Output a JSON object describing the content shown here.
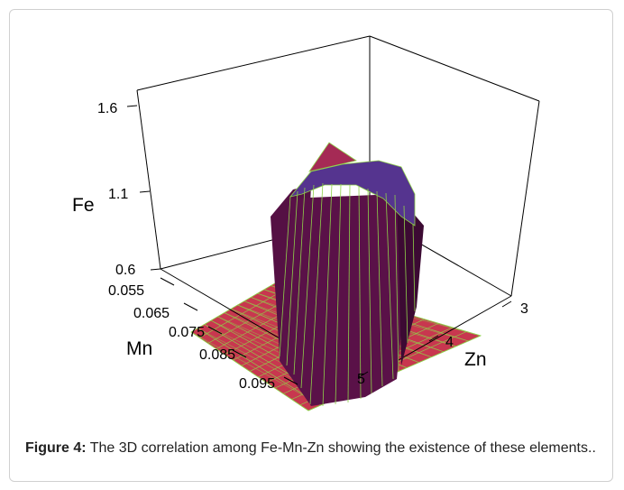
{
  "caption": {
    "label": "Figure 4:",
    "text": " The 3D correlation among Fe-Mn-Zn showing the existence of these elements.."
  },
  "chart_data": {
    "type": "surface3d",
    "zlabel": "Fe",
    "ylabel": "Mn",
    "xlabel": "Zn",
    "z_ticks": [
      "0.6",
      "1.1",
      "1.6"
    ],
    "y_ticks": [
      "0.055",
      "0.065",
      "0.075",
      "0.085",
      "0.095"
    ],
    "x_ticks": [
      "3",
      "4",
      "5"
    ],
    "zlim": [
      0.6,
      1.6
    ],
    "colors": {
      "floor": "#c8374f",
      "walls": "#551044",
      "wall_dark": "#3c0a33",
      "top": "#55348f",
      "cap": "#a52a55",
      "mesh": "#8fd14a"
    }
  }
}
